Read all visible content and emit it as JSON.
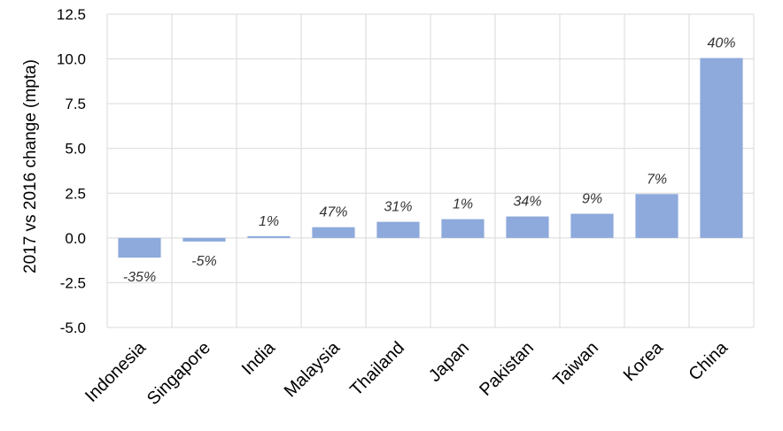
{
  "chart_data": {
    "type": "bar",
    "title": "",
    "xlabel": "",
    "ylabel": "2017 vs 2016 change (mpta)",
    "ylim": [
      -5.0,
      12.5
    ],
    "yticks": [
      "12.5",
      "10.0",
      "7.5",
      "5.0",
      "2.5",
      "0.0",
      "-2.5",
      "-5.0"
    ],
    "ytick_values": [
      12.5,
      10.0,
      7.5,
      5.0,
      2.5,
      0.0,
      -2.5,
      -5.0
    ],
    "grid": true,
    "categories": [
      "Indonesia",
      "Singapore",
      "India",
      "Malaysia",
      "Thailand",
      "Japan",
      "Pakistan",
      "Taiwan",
      "Korea",
      "China"
    ],
    "values": [
      -1.1,
      -0.2,
      0.1,
      0.6,
      0.9,
      1.05,
      1.2,
      1.35,
      2.45,
      10.05
    ],
    "data_labels": [
      "-35%",
      "-5%",
      "1%",
      "47%",
      "31%",
      "1%",
      "34%",
      "9%",
      "7%",
      "40%"
    ],
    "bar_color": "#8EA9DB",
    "grid_color": "#D9D9D9"
  }
}
